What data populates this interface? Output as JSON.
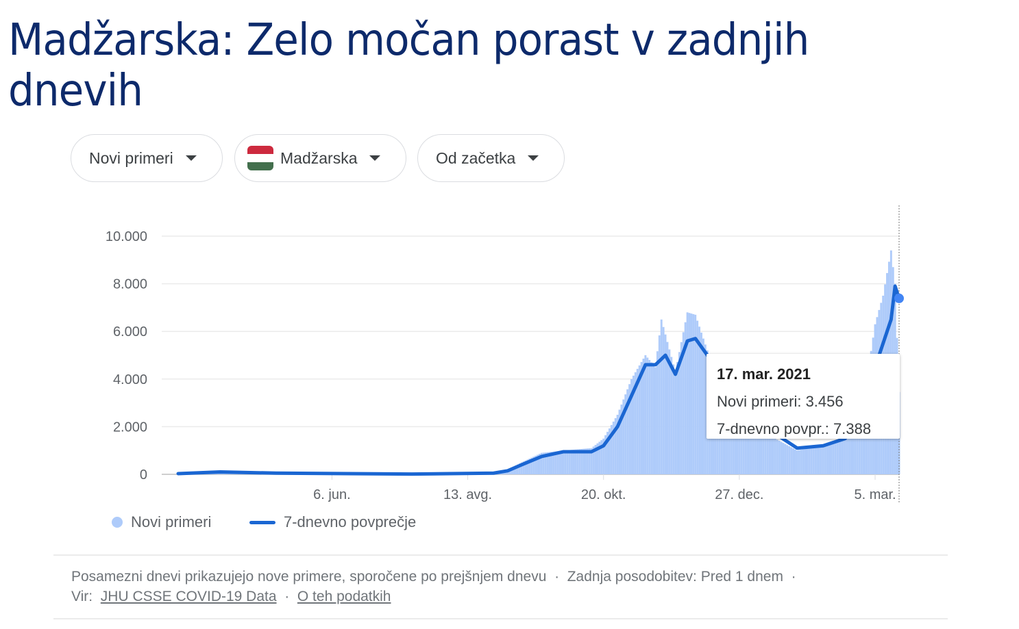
{
  "title": "Madžarska: Zelo močan porast v zadnjih dnevih",
  "filters": {
    "metric": "Novi primeri",
    "country": "Madžarska",
    "range": "Od začetka"
  },
  "flag_colors": [
    "#cd2a3e",
    "#ffffff",
    "#436f4d"
  ],
  "colors": {
    "bars": "#aecbfa",
    "line": "#1a66d2"
  },
  "tooltip": {
    "date": "17. mar. 2021",
    "cases": "Novi primeri: 3.456",
    "avg": "7-dnevno povpr.: 7.388"
  },
  "legend": {
    "cases": "Novi primeri",
    "avg": "7-dnevno povprečje"
  },
  "footer": {
    "note": "Posamezni dnevi prikazujejo nove primere, sporočene po prejšnjem dnevu",
    "sep": "·",
    "updated": "Zadnja posodobitev: Pred 1 dnem",
    "source_label": "Vir:",
    "source_link": "JHU CSSE COVID-19 Data",
    "about_link": "O teh podatkih"
  },
  "chart_data": {
    "type": "bar+line",
    "title": "",
    "y_ticks": [
      {
        "v": 0,
        "label": "0"
      },
      {
        "v": 2000,
        "label": "2.000"
      },
      {
        "v": 4000,
        "label": "4.000"
      },
      {
        "v": 6000,
        "label": "6.000"
      },
      {
        "v": 8000,
        "label": "8.000"
      },
      {
        "v": 10000,
        "label": "10.000"
      }
    ],
    "ylim": [
      0,
      10000
    ],
    "xlim": [
      "2020-03-21",
      "2021-03-17"
    ],
    "x_ticks": [
      {
        "d": "2020-06-06",
        "label": "6. jun."
      },
      {
        "d": "2020-08-13",
        "label": "13. avg."
      },
      {
        "d": "2020-10-20",
        "label": "20. okt."
      },
      {
        "d": "2020-12-27",
        "label": "27. dec."
      },
      {
        "d": "2021-03-05",
        "label": "5. mar."
      }
    ],
    "series": [
      {
        "name": "Novi primeri",
        "type": "bar",
        "points": [
          [
            "2020-03-21",
            30
          ],
          [
            "2020-04-11",
            100
          ],
          [
            "2020-05-09",
            50
          ],
          [
            "2020-07-16",
            15
          ],
          [
            "2020-08-26",
            60
          ],
          [
            "2020-09-02",
            200
          ],
          [
            "2020-09-09",
            500
          ],
          [
            "2020-09-19",
            900
          ],
          [
            "2020-09-30",
            1000
          ],
          [
            "2020-10-14",
            1100
          ],
          [
            "2020-10-20",
            1500
          ],
          [
            "2020-10-27",
            2500
          ],
          [
            "2020-11-03",
            4000
          ],
          [
            "2020-11-10",
            5000
          ],
          [
            "2020-11-15",
            4500
          ],
          [
            "2020-11-18",
            6500
          ],
          [
            "2020-11-25",
            4300
          ],
          [
            "2020-12-01",
            6800
          ],
          [
            "2020-12-05",
            6700
          ],
          [
            "2020-12-11",
            5200
          ],
          [
            "2020-12-21",
            3500
          ],
          [
            "2021-01-04",
            2200
          ],
          [
            "2021-01-14",
            1500
          ],
          [
            "2021-01-25",
            1000
          ],
          [
            "2021-02-07",
            1200
          ],
          [
            "2021-02-18",
            1600
          ],
          [
            "2021-02-28",
            3500
          ],
          [
            "2021-03-05",
            6300
          ],
          [
            "2021-03-09",
            7500
          ],
          [
            "2021-03-13",
            9400
          ],
          [
            "2021-03-15",
            8000
          ],
          [
            "2021-03-17",
            3456
          ]
        ]
      },
      {
        "name": "7-dnevno povprečje",
        "type": "line",
        "points": [
          [
            "2020-03-21",
            30
          ],
          [
            "2020-04-11",
            100
          ],
          [
            "2020-05-09",
            50
          ],
          [
            "2020-07-16",
            10
          ],
          [
            "2020-08-26",
            50
          ],
          [
            "2020-09-02",
            150
          ],
          [
            "2020-09-09",
            400
          ],
          [
            "2020-09-19",
            750
          ],
          [
            "2020-09-30",
            950
          ],
          [
            "2020-10-14",
            950
          ],
          [
            "2020-10-20",
            1200
          ],
          [
            "2020-10-27",
            2000
          ],
          [
            "2020-11-03",
            3300
          ],
          [
            "2020-11-10",
            4600
          ],
          [
            "2020-11-15",
            4600
          ],
          [
            "2020-11-20",
            5000
          ],
          [
            "2020-11-25",
            4200
          ],
          [
            "2020-12-01",
            5600
          ],
          [
            "2020-12-05",
            5700
          ],
          [
            "2020-12-11",
            5000
          ],
          [
            "2020-12-21",
            3700
          ],
          [
            "2021-01-04",
            2600
          ],
          [
            "2021-01-14",
            1700
          ],
          [
            "2021-01-25",
            1100
          ],
          [
            "2021-02-07",
            1200
          ],
          [
            "2021-02-18",
            1500
          ],
          [
            "2021-02-28",
            3000
          ],
          [
            "2021-03-07",
            5000
          ],
          [
            "2021-03-13",
            6500
          ],
          [
            "2021-03-15",
            7900
          ],
          [
            "2021-03-17",
            7388
          ]
        ]
      }
    ]
  }
}
